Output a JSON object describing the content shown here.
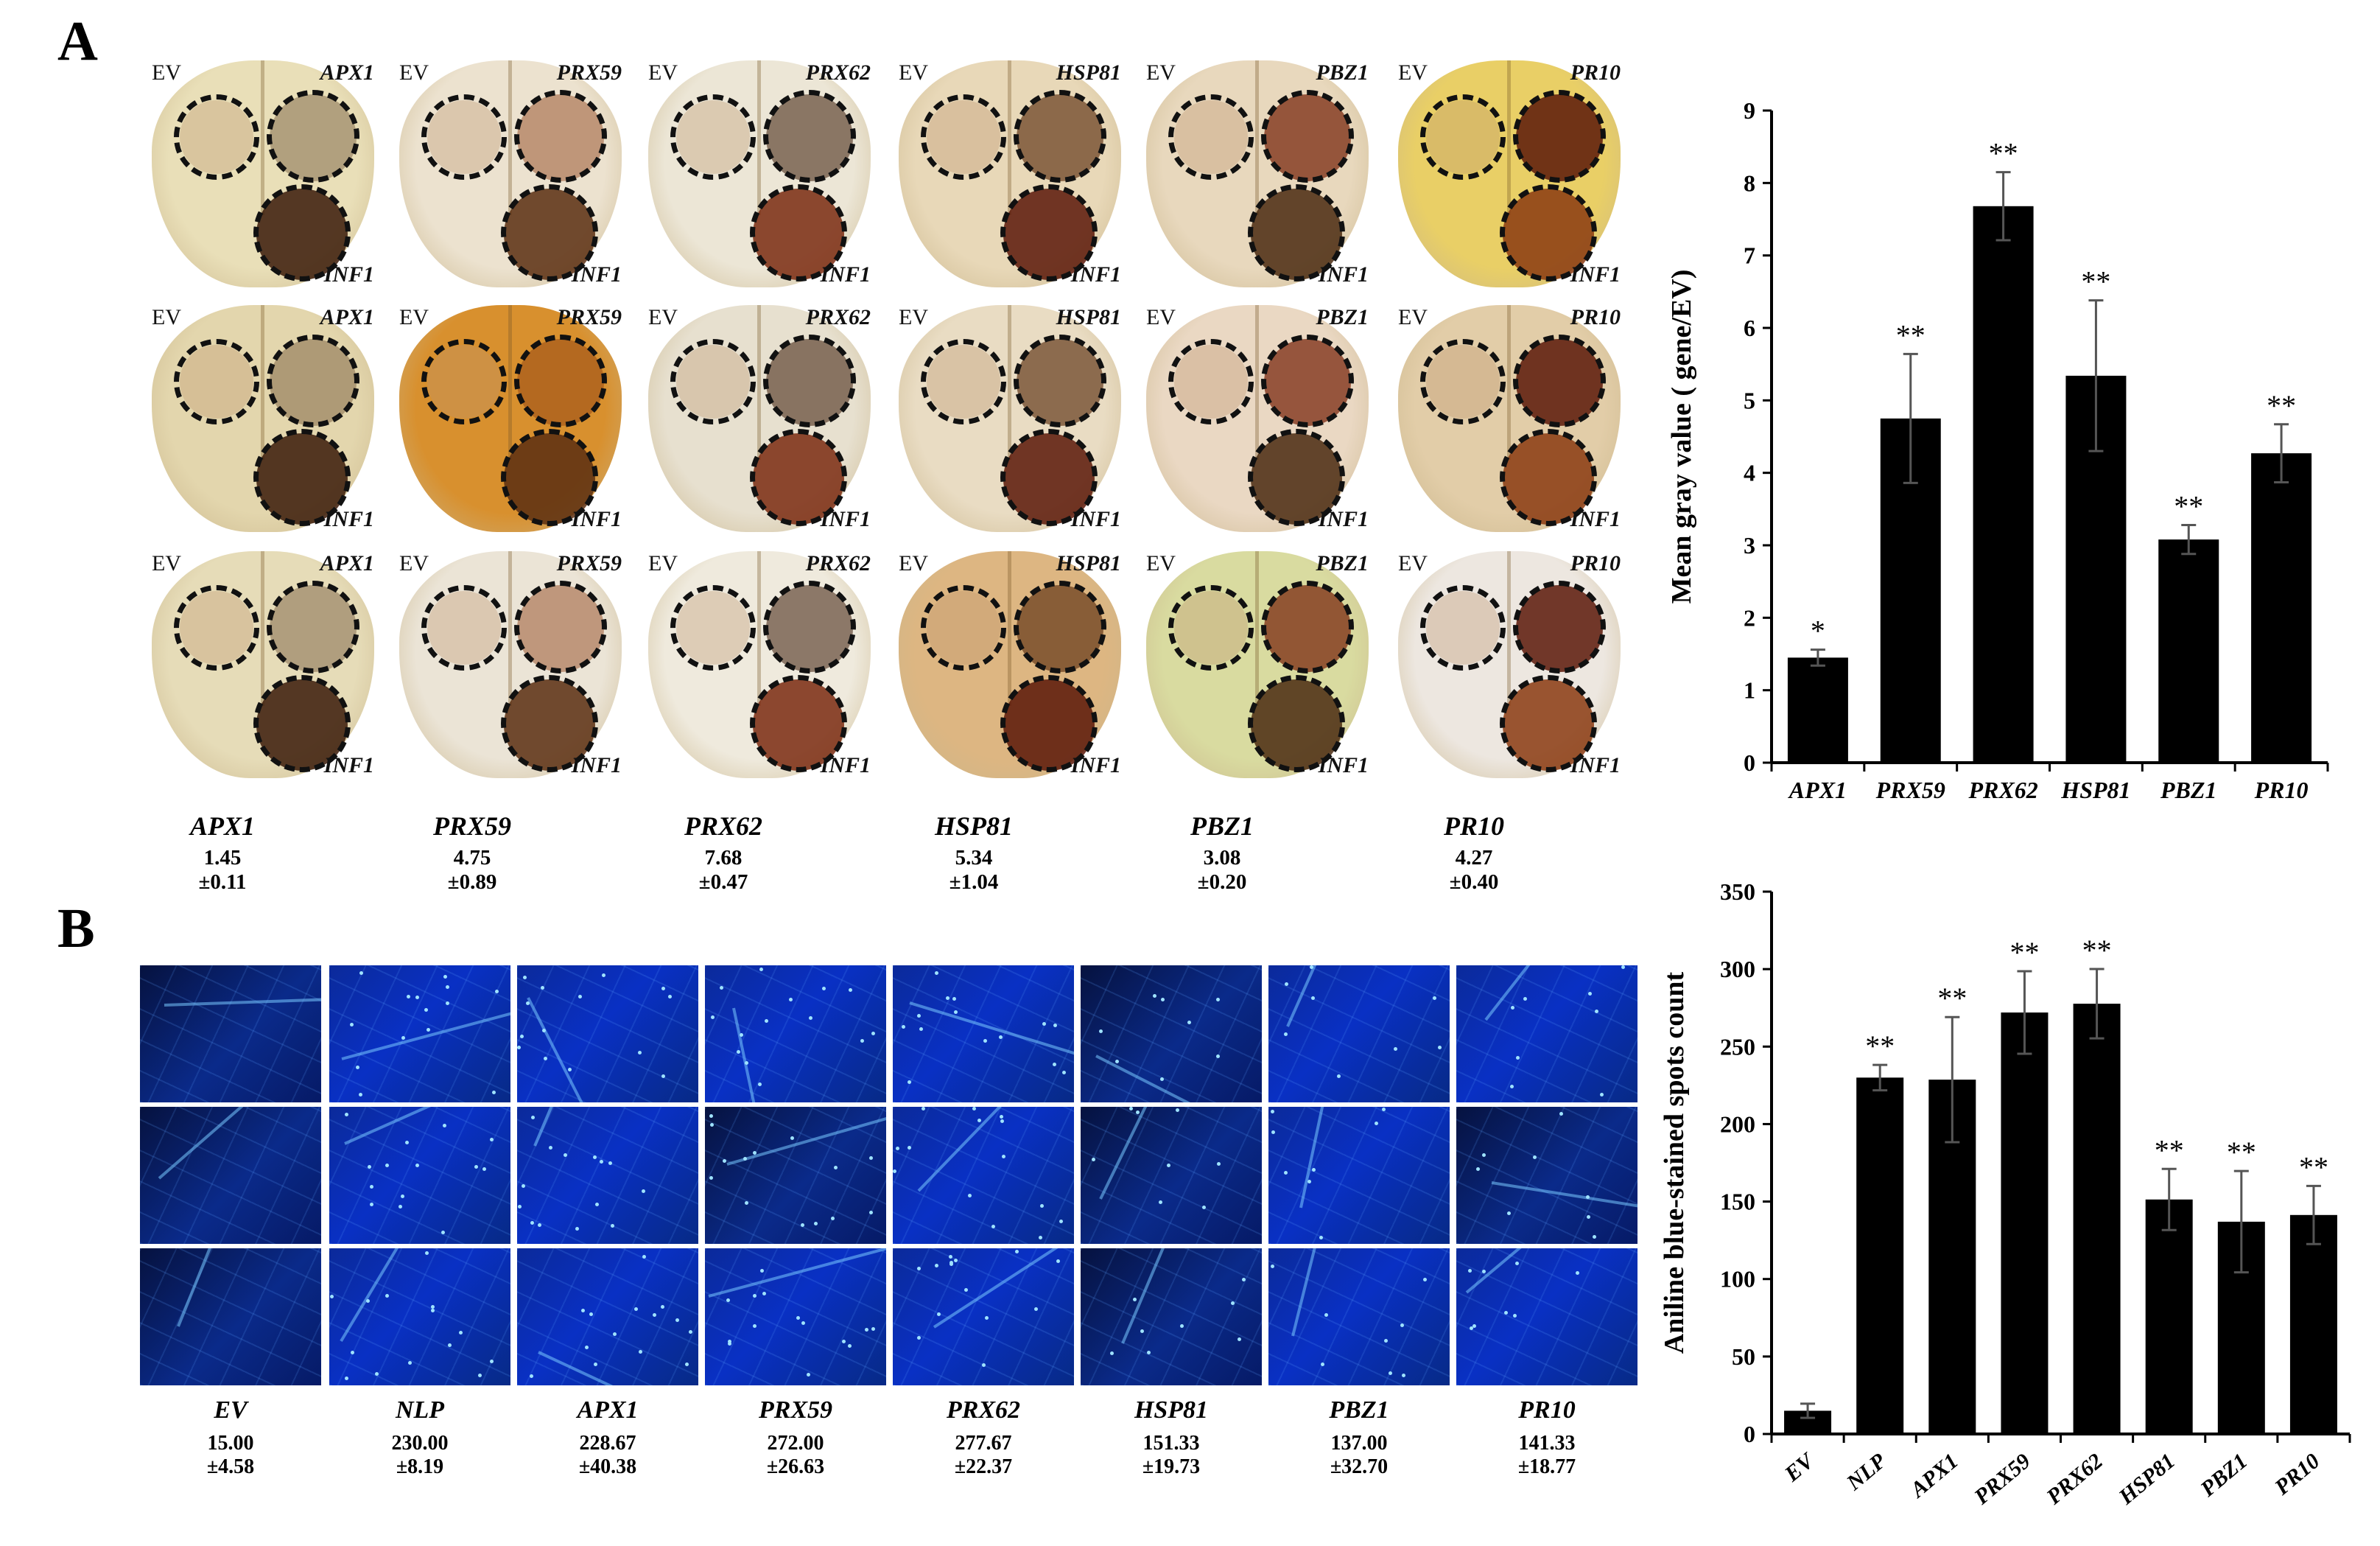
{
  "figure": {
    "panel_a_label": "A",
    "panel_b_label": "B",
    "leaf_labels": {
      "ev": "EV",
      "inf": "INF1"
    },
    "panel_a_genes": [
      "APX1",
      "PRX59",
      "PRX62",
      "HSP81",
      "PBZ1",
      "PR10"
    ],
    "panel_a_captions": [
      {
        "gene": "APX1",
        "mean": "1.45",
        "sd": "±0.11"
      },
      {
        "gene": "PRX59",
        "mean": "4.75",
        "sd": "±0.89"
      },
      {
        "gene": "PRX62",
        "mean": "7.68",
        "sd": "±0.47"
      },
      {
        "gene": "HSP81",
        "mean": "5.34",
        "sd": "±1.04"
      },
      {
        "gene": "PBZ1",
        "mean": "3.08",
        "sd": "±0.20"
      },
      {
        "gene": "PR10",
        "mean": "4.27",
        "sd": "±0.40"
      }
    ],
    "panel_b_captions": [
      {
        "gene": "EV",
        "mean": "15.00",
        "sd": "±4.58"
      },
      {
        "gene": "NLP",
        "mean": "230.00",
        "sd": "±8.19"
      },
      {
        "gene": "APX1",
        "mean": "228.67",
        "sd": "±40.38"
      },
      {
        "gene": "PRX59",
        "mean": "272.00",
        "sd": "±26.63"
      },
      {
        "gene": "PRX62",
        "mean": "277.67",
        "sd": "±22.37"
      },
      {
        "gene": "HSP81",
        "mean": "151.33",
        "sd": "±19.73"
      },
      {
        "gene": "PBZ1",
        "mean": "137.00",
        "sd": "±32.70"
      },
      {
        "gene": "PR10",
        "mean": "141.33",
        "sd": "±18.77"
      }
    ],
    "colors": {
      "bar": "#000000",
      "stain_blue": "#0a2fb8"
    }
  },
  "chart_data": [
    {
      "type": "bar",
      "title": "",
      "xlabel": "",
      "ylabel": "Mean gray value ( gene/EV)",
      "categories": [
        "APX1",
        "PRX59",
        "PRX62",
        "HSP81",
        "PBZ1",
        "PR10"
      ],
      "values": [
        1.45,
        4.75,
        7.68,
        5.34,
        3.08,
        4.27
      ],
      "errors": [
        0.11,
        0.89,
        0.47,
        1.04,
        0.2,
        0.4
      ],
      "significance": [
        "*",
        "**",
        "**",
        "**",
        "**",
        "**"
      ],
      "ylim": [
        0,
        9
      ],
      "yticks": [
        0,
        1,
        2,
        3,
        4,
        5,
        6,
        7,
        8,
        9
      ],
      "grid": false
    },
    {
      "type": "bar",
      "title": "",
      "xlabel": "",
      "ylabel": "Aniline blue-stained spots count",
      "categories": [
        "EV",
        "NLP",
        "APX1",
        "PRX59",
        "PRX62",
        "HSP81",
        "PBZ1",
        "PR10"
      ],
      "values": [
        15.0,
        230.0,
        228.67,
        272.0,
        277.67,
        151.33,
        137.0,
        141.33
      ],
      "errors": [
        4.58,
        8.19,
        40.38,
        26.63,
        22.37,
        19.73,
        32.7,
        18.77
      ],
      "significance": [
        "",
        "**",
        "**",
        "**",
        "**",
        "**",
        "**",
        "**"
      ],
      "ylim": [
        0,
        350
      ],
      "yticks": [
        0,
        50,
        100,
        150,
        200,
        250,
        300,
        350
      ],
      "grid": false
    }
  ]
}
